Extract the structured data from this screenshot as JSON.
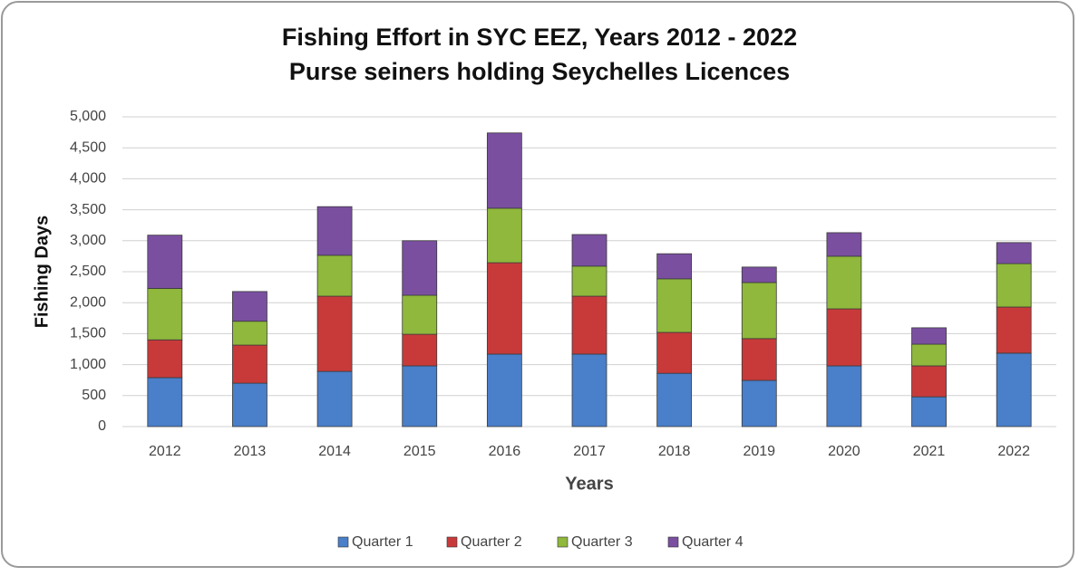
{
  "chart_data": {
    "type": "bar",
    "stacked": true,
    "title": "Fishing Effort in SYC EEZ, Years 2012 - 2022",
    "subtitle": "Purse seiners holding Seychelles Licences",
    "x_label": "Years",
    "y_label": "Fishing Days",
    "categories": [
      "2012",
      "2013",
      "2014",
      "2015",
      "2016",
      "2017",
      "2018",
      "2019",
      "2020",
      "2021",
      "2022"
    ],
    "series": [
      {
        "name": "Quarter 1",
        "color": "#4a7fc9",
        "values": [
          790,
          700,
          890,
          980,
          1170,
          1170,
          860,
          745,
          980,
          480,
          1185
        ]
      },
      {
        "name": "Quarter 2",
        "color": "#c83a3a",
        "values": [
          610,
          615,
          1215,
          510,
          1475,
          935,
          660,
          675,
          920,
          500,
          745
        ]
      },
      {
        "name": "Quarter 3",
        "color": "#8fb83c",
        "values": [
          830,
          385,
          660,
          630,
          880,
          485,
          865,
          905,
          850,
          350,
          700
        ]
      },
      {
        "name": "Quarter 4",
        "color": "#7a4fa0",
        "values": [
          860,
          480,
          785,
          880,
          1215,
          510,
          405,
          250,
          380,
          265,
          340
        ]
      }
    ],
    "ylim": [
      0,
      5000
    ],
    "yticks": [
      0,
      500,
      {
        "value": 1000,
        "label": "1,000"
      },
      {
        "value": 1500,
        "label": "1,500"
      },
      {
        "value": 2000,
        "label": "2,000"
      },
      {
        "value": 2500,
        "label": "2,500"
      },
      {
        "value": 3000,
        "label": "3,000"
      },
      {
        "value": 3500,
        "label": "3,500"
      },
      {
        "value": 4000,
        "label": "4,000"
      },
      {
        "value": 4500,
        "label": "4,500"
      },
      {
        "value": 5000,
        "label": "5,000"
      }
    ],
    "grid": true,
    "legend": "bottom"
  }
}
